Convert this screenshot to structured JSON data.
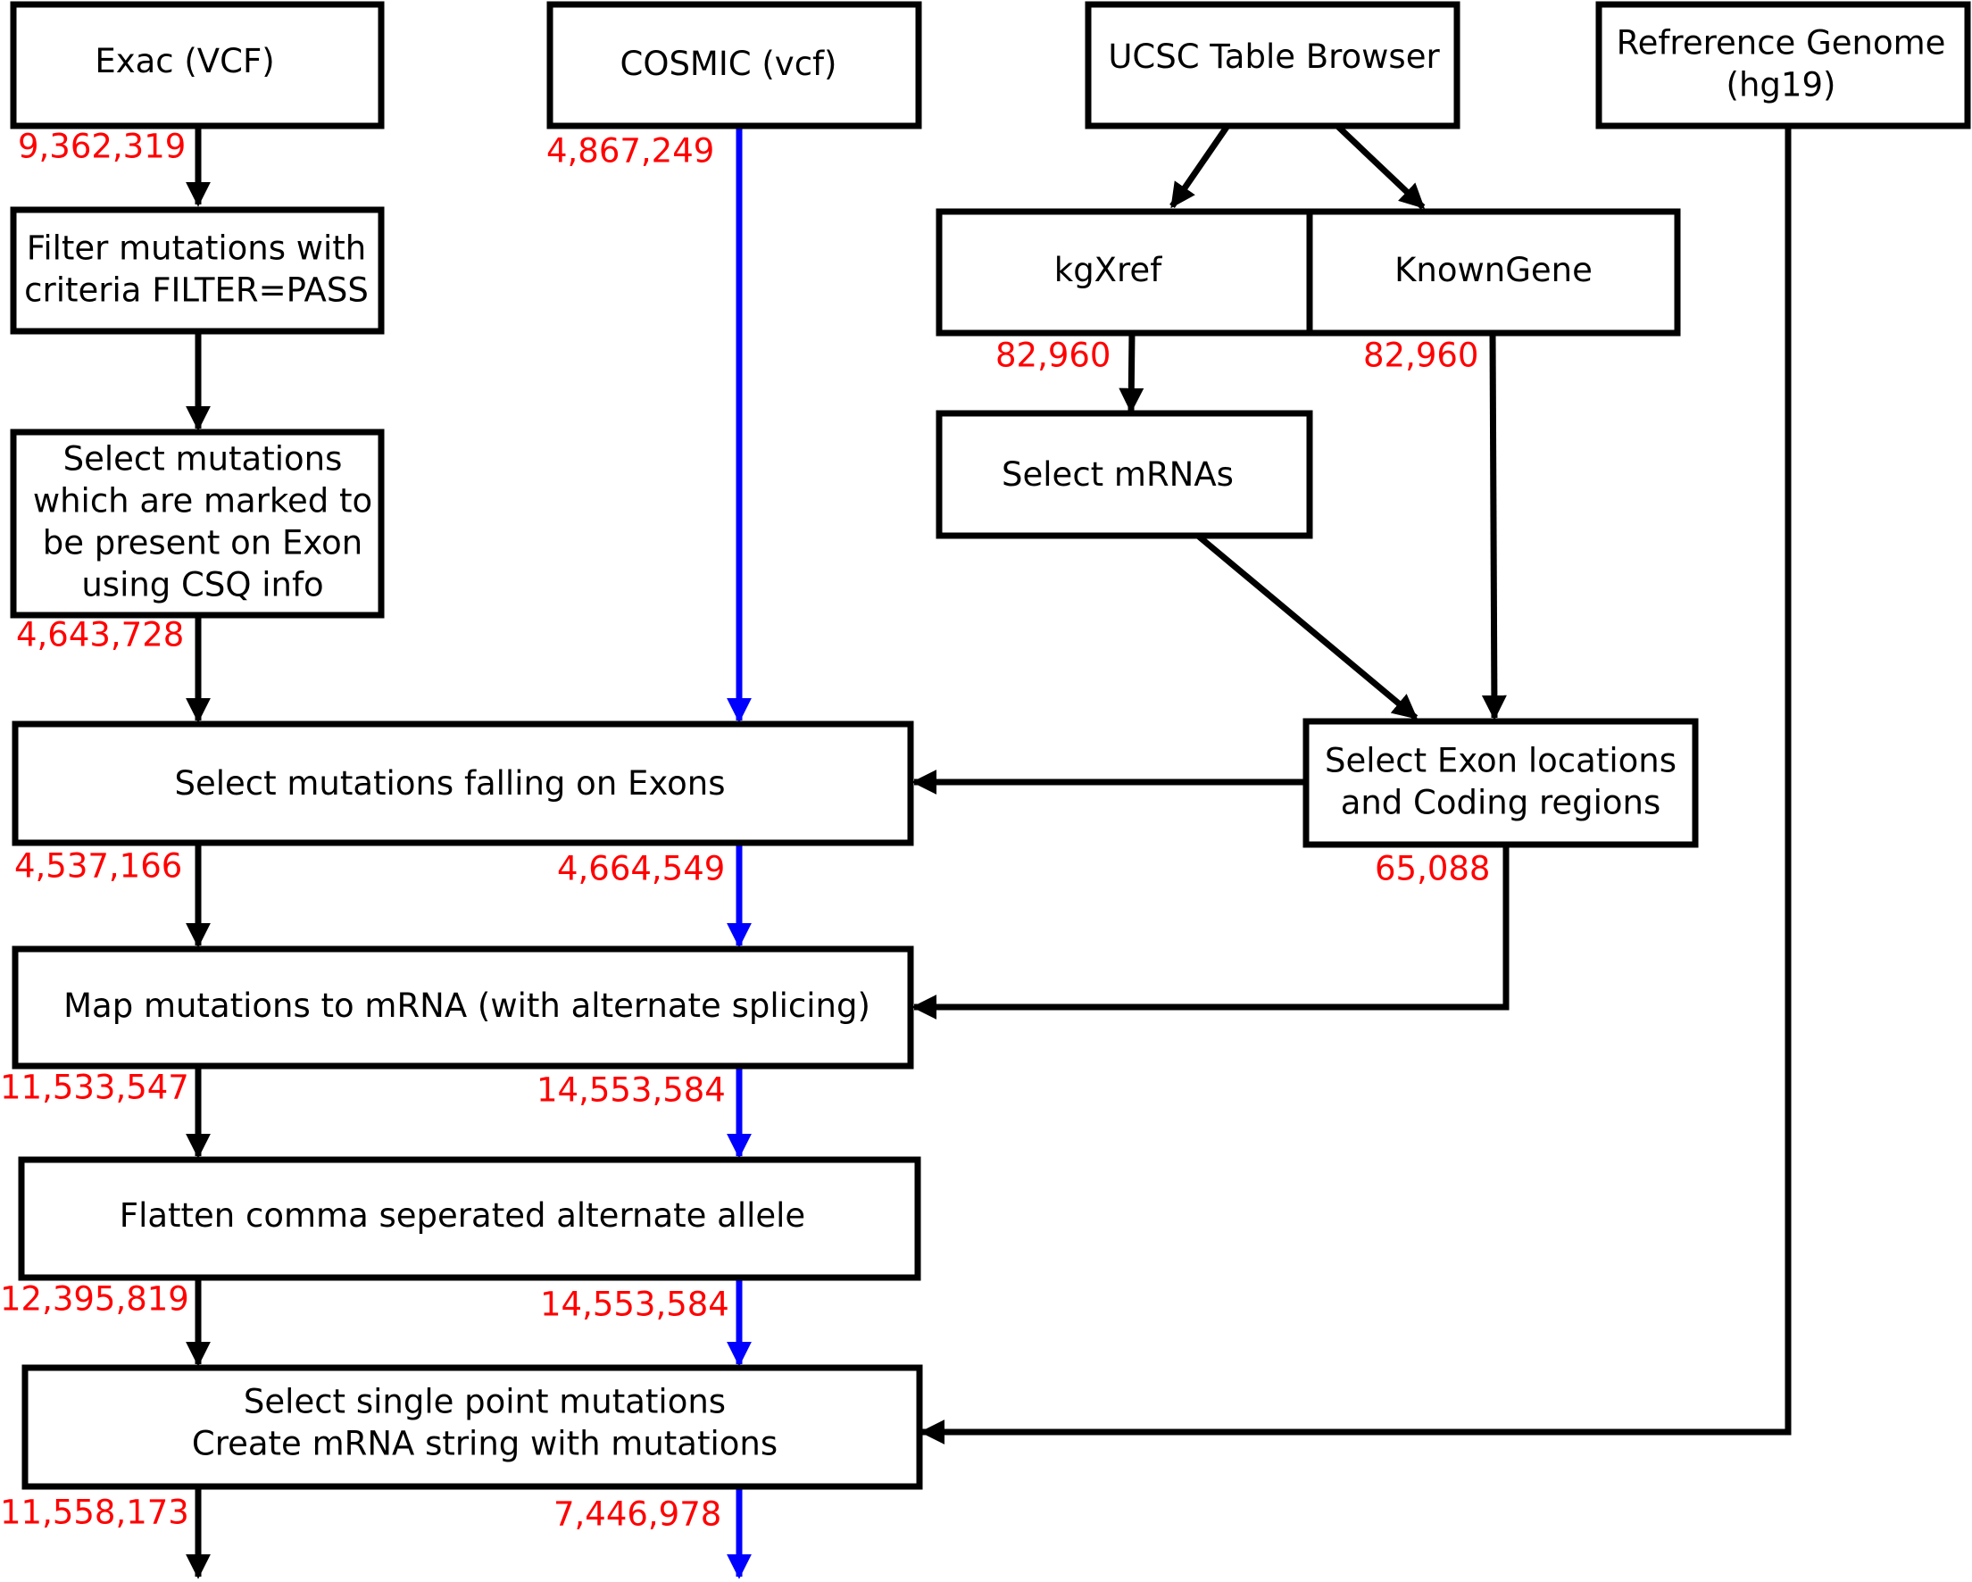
{
  "nodes": {
    "exac": {
      "lines": [
        "Exac (VCF)"
      ]
    },
    "cosmic": {
      "lines": [
        "COSMIC (vcf)"
      ]
    },
    "ucsc": {
      "lines": [
        "UCSC Table Browser"
      ]
    },
    "refgenome": {
      "lines": [
        "Refrerence Genome",
        "(hg19)"
      ]
    },
    "filter": {
      "lines": [
        "Filter mutations with",
        "criteria FILTER=PASS"
      ]
    },
    "kgxref": {
      "lines": [
        "kgXref"
      ]
    },
    "knowngene": {
      "lines": [
        "KnownGene"
      ]
    },
    "selectexonmarked": {
      "lines": [
        "Select mutations",
        "which are marked to",
        "be present on Exon",
        "using CSQ info"
      ]
    },
    "selectmrnas": {
      "lines": [
        "Select mRNAs"
      ]
    },
    "selectfalling": {
      "lines": [
        "Select mutations falling on Exons"
      ]
    },
    "selectexonloc": {
      "lines": [
        "Select Exon locations",
        "and Coding regions"
      ]
    },
    "mapmrna": {
      "lines": [
        "Map mutations to mRNA (with alternate splicing)"
      ]
    },
    "flatten": {
      "lines": [
        "Flatten comma seperated alternate allele"
      ]
    },
    "selectsingle": {
      "lines": [
        "Select single point mutations",
        "Create mRNA string with mutations"
      ]
    }
  },
  "counts": {
    "exac_out": "9,362,319",
    "cosmic_out": "4,867,249",
    "kgxref_out": "82,960",
    "knowngene_out": "82,960",
    "exonmarked_out": "4,643,728",
    "falling_exac_out": "4,537,166",
    "falling_cosmic_out": "4,664,549",
    "exonloc_out": "65,088",
    "map_exac_out": "11,533,547",
    "map_cosmic_out": "14,553,584",
    "flatten_exac_out": "12,395,819",
    "flatten_cosmic_out": "14,553,584",
    "single_exac_out": "11,558,173",
    "single_cosmic_out": "7,446,978"
  },
  "colors": {
    "box_stroke": "#000000",
    "exac_flow": "#000000",
    "cosmic_flow": "#0000ff",
    "count_text": "#ff0000"
  }
}
